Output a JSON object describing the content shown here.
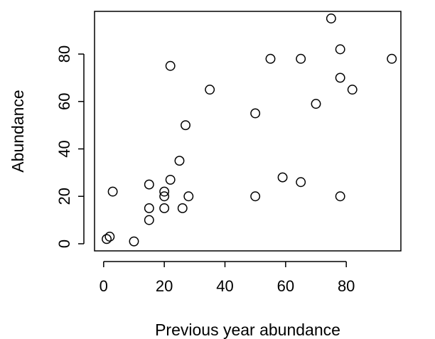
{
  "chart_data": {
    "type": "scatter",
    "title": "",
    "xlabel": "Previous year abundance",
    "ylabel": "Abundance",
    "xlim": [
      -3,
      98
    ],
    "ylim": [
      -3,
      98
    ],
    "x_ticks": [
      0,
      20,
      40,
      60,
      80
    ],
    "y_ticks": [
      0,
      20,
      40,
      60,
      80
    ],
    "grid": false,
    "legend": "none",
    "marker": "open-circle",
    "colors": {
      "point_stroke": "#000000",
      "axis": "#000000",
      "background": "#ffffff"
    },
    "points": [
      {
        "x": 1,
        "y": 2
      },
      {
        "x": 2,
        "y": 3
      },
      {
        "x": 3,
        "y": 22
      },
      {
        "x": 10,
        "y": 1
      },
      {
        "x": 15,
        "y": 10
      },
      {
        "x": 15,
        "y": 15
      },
      {
        "x": 15,
        "y": 25
      },
      {
        "x": 20,
        "y": 15
      },
      {
        "x": 20,
        "y": 20
      },
      {
        "x": 20,
        "y": 22
      },
      {
        "x": 22,
        "y": 27
      },
      {
        "x": 22,
        "y": 75
      },
      {
        "x": 25,
        "y": 35
      },
      {
        "x": 26,
        "y": 15
      },
      {
        "x": 27,
        "y": 50
      },
      {
        "x": 28,
        "y": 20
      },
      {
        "x": 35,
        "y": 65
      },
      {
        "x": 50,
        "y": 20
      },
      {
        "x": 50,
        "y": 55
      },
      {
        "x": 55,
        "y": 78
      },
      {
        "x": 59,
        "y": 28
      },
      {
        "x": 65,
        "y": 26
      },
      {
        "x": 65,
        "y": 78
      },
      {
        "x": 70,
        "y": 59
      },
      {
        "x": 75,
        "y": 95
      },
      {
        "x": 78,
        "y": 20
      },
      {
        "x": 78,
        "y": 70
      },
      {
        "x": 78,
        "y": 82
      },
      {
        "x": 82,
        "y": 65
      },
      {
        "x": 95,
        "y": 78
      }
    ]
  }
}
